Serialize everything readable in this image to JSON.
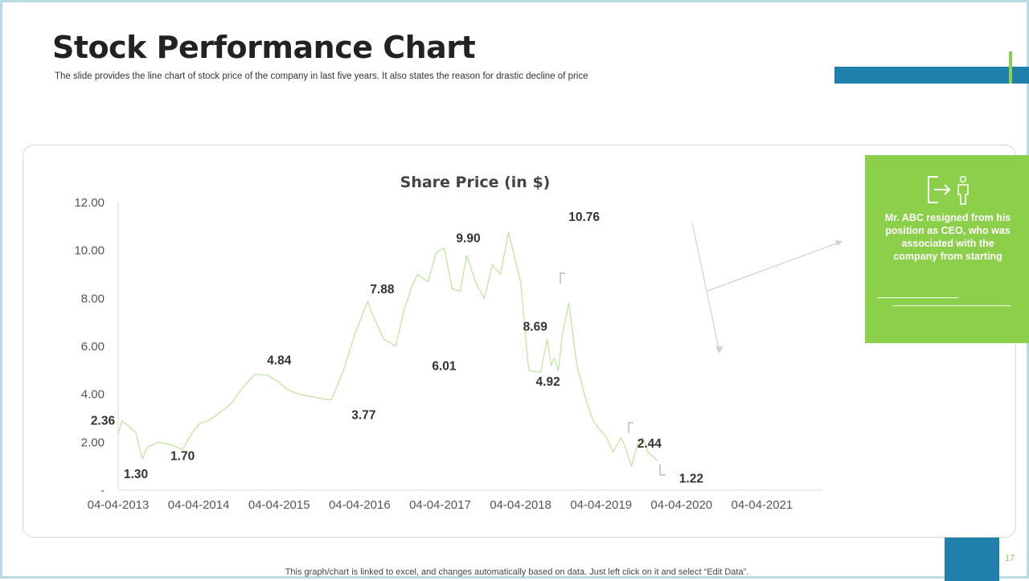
{
  "slide": {
    "title": "Stock Performance Chart",
    "subtitle": "The slide provides the line chart of stock price of the company in last five years. It also states the reason for drastic decline of price",
    "footer": "This graph/chart is linked to excel, and changes automatically based on data. Just left click on it and select “Edit Data”.",
    "page_number": "17"
  },
  "callout": {
    "icon": "person-exit-icon",
    "text": "Mr. ABC resigned from his position as CEO, who was associated with the company from starting"
  },
  "colors": {
    "accent_green": "#8ccf4a",
    "accent_blue": "#1e80ab",
    "line_color": "#c5e6a7"
  },
  "chart_data": {
    "type": "line",
    "title": "Share Price (in $)",
    "xlabel": "",
    "ylabel": "",
    "x_ticks": [
      "04-04-2013",
      "04-04-2014",
      "04-04-2015",
      "04-04-2016",
      "04-04-2017",
      "04-04-2018",
      "04-04-2019",
      "04-04-2020",
      "04-04-2021"
    ],
    "xlim": [
      2013.0,
      2021.75
    ],
    "y_ticks": [
      "-",
      "2.00",
      "4.00",
      "6.00",
      "8.00",
      "10.00",
      "12.00"
    ],
    "ylim": [
      0,
      12
    ],
    "legend": "none",
    "series": [
      {
        "name": "Share Price",
        "x": [
          2013.0,
          2013.05,
          2013.12,
          2013.22,
          2013.3,
          2013.36,
          2013.5,
          2013.65,
          2013.8,
          2013.92,
          2014.02,
          2014.12,
          2014.25,
          2014.4,
          2014.55,
          2014.7,
          2014.85,
          2015.0,
          2015.1,
          2015.25,
          2015.4,
          2015.55,
          2015.65,
          2015.8,
          2015.95,
          2016.1,
          2016.15,
          2016.3,
          2016.45,
          2016.55,
          2016.65,
          2016.72,
          2016.85,
          2016.95,
          2017.05,
          2017.15,
          2017.25,
          2017.33,
          2017.45,
          2017.55,
          2017.65,
          2017.75,
          2017.85,
          2018.0,
          2018.1,
          2018.25,
          2018.33,
          2018.38,
          2018.42,
          2018.47,
          2018.52,
          2018.6,
          2018.7,
          2018.8,
          2018.9,
          2019.0,
          2019.05,
          2019.15,
          2019.25,
          2019.3,
          2019.38,
          2019.45,
          2019.52,
          2019.58,
          2019.65,
          2019.7
        ],
        "values": [
          2.36,
          2.9,
          2.7,
          2.4,
          1.3,
          1.8,
          2.0,
          1.9,
          1.7,
          2.4,
          2.8,
          2.9,
          3.2,
          3.6,
          4.3,
          4.84,
          4.8,
          4.5,
          4.2,
          4.0,
          3.9,
          3.8,
          3.77,
          5.0,
          6.6,
          7.88,
          7.4,
          6.3,
          6.01,
          7.5,
          8.5,
          9.0,
          8.7,
          9.9,
          10.1,
          8.4,
          8.3,
          9.8,
          8.6,
          8.0,
          9.4,
          9.0,
          10.76,
          8.69,
          5.0,
          4.92,
          6.3,
          5.2,
          5.5,
          5.0,
          6.5,
          7.8,
          5.2,
          3.9,
          2.9,
          2.44,
          2.3,
          1.6,
          2.2,
          1.8,
          1.0,
          1.9,
          2.2,
          1.6,
          1.4,
          1.22
        ]
      }
    ],
    "data_labels": [
      {
        "text": "2.36",
        "x": 2013.0,
        "y": 2.36
      },
      {
        "text": "1.30",
        "x": 2013.36,
        "y": 1.3
      },
      {
        "text": "1.70",
        "x": 2013.92,
        "y": 1.7
      },
      {
        "text": "4.84",
        "x": 2015.0,
        "y": 4.84
      },
      {
        "text": "3.77",
        "x": 2016.15,
        "y": 3.77
      },
      {
        "text": "7.88",
        "x": 2016.5,
        "y": 7.88
      },
      {
        "text": "6.01",
        "x": 2017.05,
        "y": 6.01
      },
      {
        "text": "9.90",
        "x": 2017.4,
        "y": 9.9
      },
      {
        "text": "10.76",
        "x": 2018.57,
        "y": 10.76
      },
      {
        "text": "8.69",
        "x": 2018.77,
        "y": 8.69
      },
      {
        "text": "4.92",
        "x": 2018.49,
        "y": 4.92
      },
      {
        "text": "2.44",
        "x": 2019.45,
        "y": 2.44
      },
      {
        "text": "1.22",
        "x": 2019.82,
        "y": 1.22
      }
    ]
  }
}
